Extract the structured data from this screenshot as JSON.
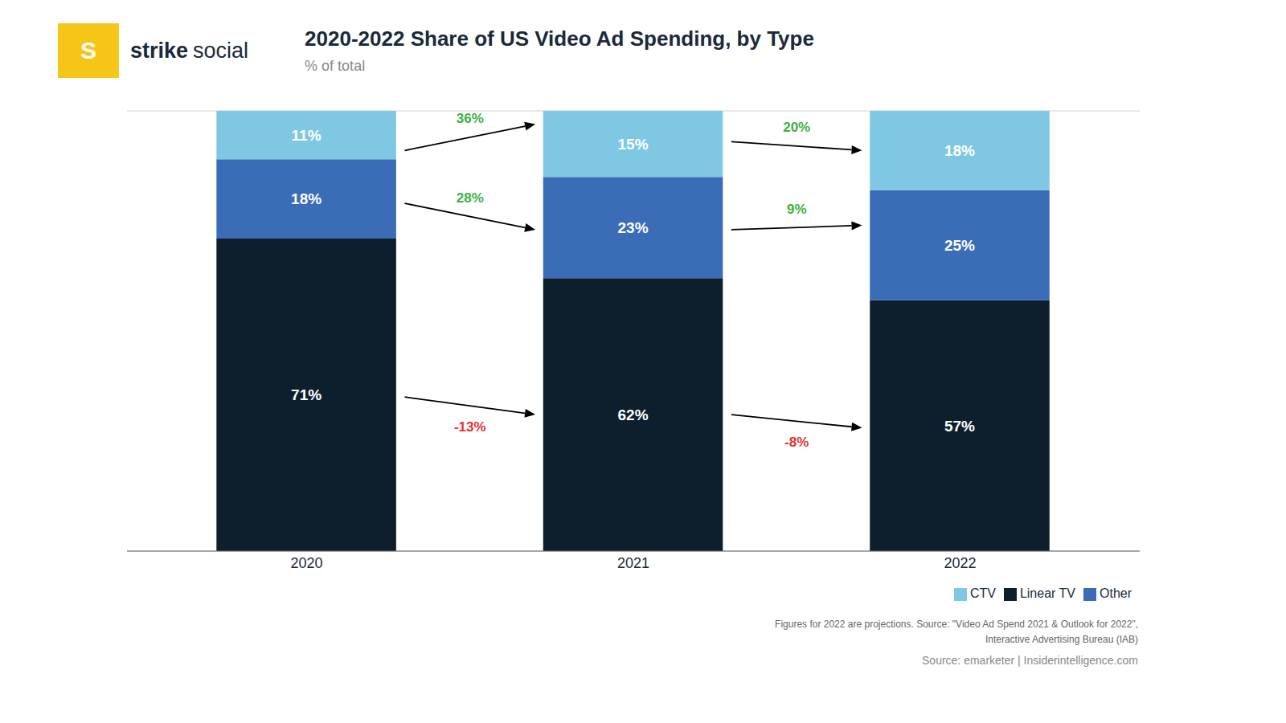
{
  "chart_data": {
    "type": "bar",
    "title": "2020-2022 Share of US Video Ad Spending, by Type",
    "subtitle": "% of total",
    "logo": {
      "text": "S",
      "color": "#f5c518"
    },
    "brand": [
      "strike",
      "social"
    ],
    "categories": [
      "2020",
      "2021",
      "2022"
    ],
    "series": [
      {
        "name": "Linear TV",
        "color": "#0d1f2d",
        "values": [
          71,
          62,
          57
        ],
        "value_labels": [
          "71%",
          "62%",
          "57%"
        ]
      },
      {
        "name": "Other",
        "color": "#3b6cb7",
        "values": [
          18,
          23,
          25
        ],
        "value_labels": [
          "18%",
          "23%",
          "25%"
        ]
      },
      {
        "name": "CTV",
        "color": "#7ec8e3",
        "values": [
          11,
          15,
          18
        ],
        "value_labels": [
          "11%",
          "15%",
          "18%"
        ]
      }
    ],
    "stacked": true,
    "data_labels": true,
    "ylim": [
      0,
      100
    ],
    "yticks": [
      0,
      25,
      50,
      75,
      100
    ],
    "grid": true,
    "tick_labels": "x",
    "legend": "lower right",
    "annotations": [
      {
        "text": "-13%",
        "color": "#e63030",
        "from": {
          "category": "2020",
          "y": 35
        },
        "to": {
          "category": "2021",
          "y": 31
        }
      },
      {
        "text": "28%",
        "color": "#3cb043",
        "from": {
          "category": "2020",
          "y": 79
        },
        "to": {
          "category": "2021",
          "y": 73
        }
      },
      {
        "text": "36%",
        "color": "#3cb043",
        "from": {
          "category": "2020",
          "y": 91
        },
        "to": {
          "category": "2021",
          "y": 97
        }
      },
      {
        "text": "-8%",
        "color": "#e63030",
        "from": {
          "category": "2021",
          "y": 31
        },
        "to": {
          "category": "2022",
          "y": 28
        }
      },
      {
        "text": "9%",
        "color": "#3cb043",
        "from": {
          "category": "2021",
          "y": 73
        },
        "to": {
          "category": "2022",
          "y": 74
        }
      },
      {
        "text": "20%",
        "color": "#3cb043",
        "from": {
          "category": "2021",
          "y": 93
        },
        "to": {
          "category": "2022",
          "y": 91
        }
      }
    ],
    "footnotes": [
      "Figures for 2022 are projections. Source: \"Video Ad Spend 2021 & Outlook for 2022\",\nInteractive Advertising Bureau (IAB)",
      "Source: emarketer | Insiderintelligence.com"
    ]
  }
}
